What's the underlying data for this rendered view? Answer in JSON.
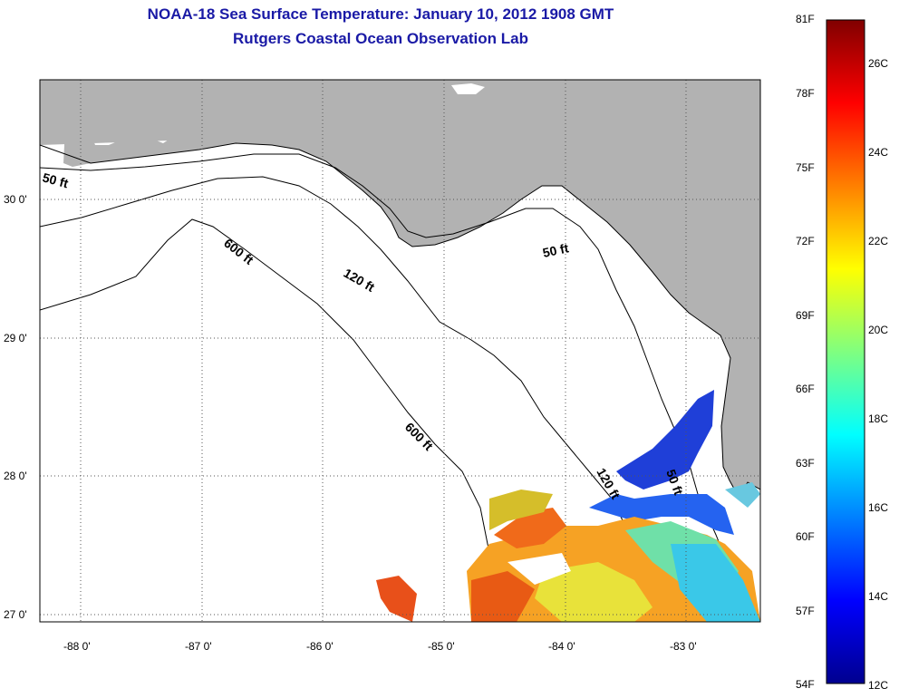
{
  "title": "NOAA-18 Sea Surface Temperature:  January 10, 2012 1908 GMT",
  "subtitle": "Rutgers Coastal Ocean Observation Lab",
  "x_ticks": [
    "-88 0'",
    "-87 0'",
    "-86 0'",
    "-85 0'",
    "-84 0'",
    "-83 0'"
  ],
  "y_ticks": [
    "30 0'",
    "29 0'",
    "28 0'",
    "27 0'"
  ],
  "contours": [
    "50 ft",
    "50 ft",
    "50 ft",
    "120 ft",
    "120 ft",
    "600 ft",
    "600 ft"
  ],
  "colorbar": {
    "f_labels": [
      "81F",
      "78F",
      "75F",
      "72F",
      "69F",
      "66F",
      "63F",
      "60F",
      "57F",
      "54F"
    ],
    "c_labels": [
      "26C",
      "24C",
      "22C",
      "20C",
      "18C",
      "16C",
      "14C",
      "12C"
    ]
  },
  "colors": {
    "land": "#b2b2b2",
    "title": "#1a1aa6"
  }
}
